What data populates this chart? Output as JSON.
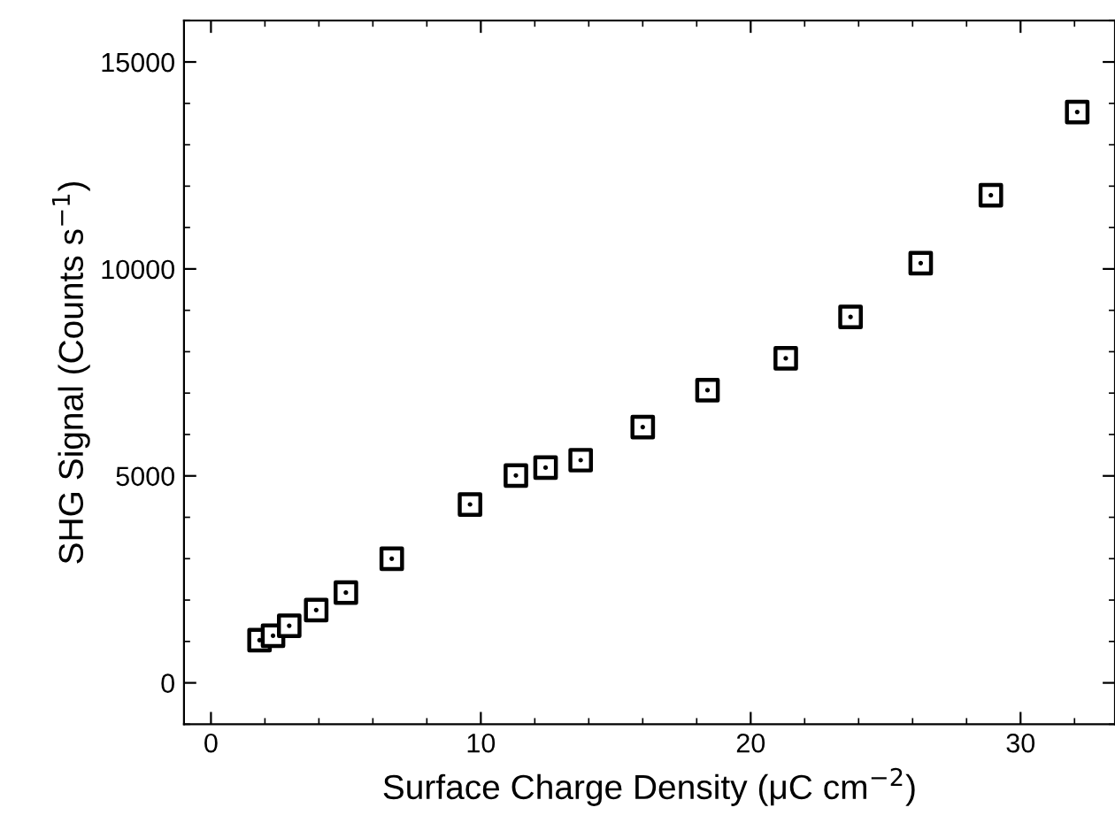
{
  "chart_data": {
    "type": "scatter",
    "xlabel": "Surface Charge Density (μC cm$^{−2}$)",
    "ylabel": "SHG Signal (Counts s$^{−1}$)",
    "x": [
      1.8,
      2.3,
      2.9,
      3.9,
      5.0,
      6.7,
      9.6,
      11.3,
      12.4,
      13.7,
      16.0,
      18.4,
      21.3,
      23.7,
      26.3,
      28.9,
      32.1
    ],
    "series": [
      {
        "color": "#000000",
        "values": [
          1030,
          1140,
          1380,
          1760,
          2180,
          3000,
          4310,
          5010,
          5200,
          5380,
          6180,
          7070,
          7840,
          8840,
          10140,
          11780,
          13790
        ]
      }
    ],
    "xlim": [
      -1,
      33.5
    ],
    "ylim": [
      -1000,
      16000
    ],
    "xticks": [
      0,
      10,
      20,
      30
    ],
    "yticks": [
      0,
      5000,
      10000,
      15000
    ],
    "marker": "square",
    "grid": false,
    "legend": false
  }
}
